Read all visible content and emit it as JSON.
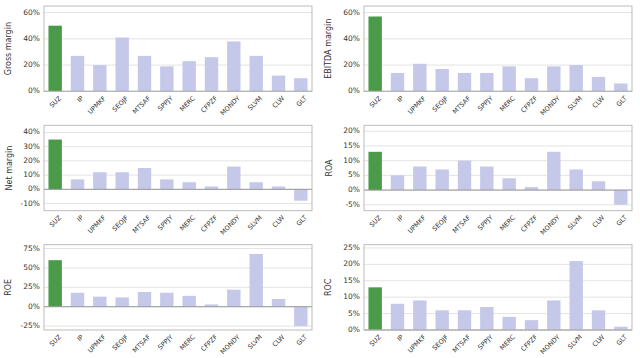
{
  "chart_data": [
    {
      "type": "bar",
      "ylabel": "Gross margin",
      "categories": [
        "SUZ",
        "IP",
        "UPMKF",
        "SEOJF",
        "MTSAF",
        "SPPJY",
        "MERC",
        "CFPZF",
        "MONDY",
        "SLVM",
        "CLW",
        "GLT"
      ],
      "values": [
        0.5,
        0.27,
        0.2,
        0.41,
        0.27,
        0.19,
        0.23,
        0.26,
        0.38,
        0.27,
        0.12,
        0.1
      ],
      "colors": [
        "#4a9a4a",
        "#c5c8e8",
        "#c5c8e8",
        "#c5c8e8",
        "#c5c8e8",
        "#c5c8e8",
        "#c5c8e8",
        "#c5c8e8",
        "#c5c8e8",
        "#c5c8e8",
        "#c5c8e8",
        "#c5c8e8"
      ],
      "ylim": [
        0.0,
        0.65
      ],
      "yticks": [
        {
          "value": 0.0,
          "label": "0%"
        },
        {
          "value": 0.2,
          "label": "20%"
        },
        {
          "value": 0.4,
          "label": "40%"
        },
        {
          "value": 0.6,
          "label": "60%"
        }
      ],
      "grid": true
    },
    {
      "type": "bar",
      "ylabel": "EBITDA margin",
      "categories": [
        "SUZ",
        "IP",
        "UPMKF",
        "SEOJF",
        "MTSAF",
        "SPPJY",
        "MERC",
        "CFPZF",
        "MONDY",
        "SLVM",
        "CLW",
        "GLT"
      ],
      "values": [
        0.57,
        0.14,
        0.21,
        0.17,
        0.14,
        0.14,
        0.19,
        0.1,
        0.19,
        0.2,
        0.11,
        0.06
      ],
      "colors": [
        "#4a9a4a",
        "#c5c8e8",
        "#c5c8e8",
        "#c5c8e8",
        "#c5c8e8",
        "#c5c8e8",
        "#c5c8e8",
        "#c5c8e8",
        "#c5c8e8",
        "#c5c8e8",
        "#c5c8e8",
        "#c5c8e8"
      ],
      "ylim": [
        0.0,
        0.65
      ],
      "yticks": [
        {
          "value": 0.0,
          "label": "0%"
        },
        {
          "value": 0.2,
          "label": "20%"
        },
        {
          "value": 0.4,
          "label": "40%"
        },
        {
          "value": 0.6,
          "label": "60%"
        }
      ],
      "grid": true
    },
    {
      "type": "bar",
      "ylabel": "Net margin",
      "categories": [
        "SUZ",
        "IP",
        "UPMKF",
        "SEOJF",
        "MTSAF",
        "SPPJY",
        "MERC",
        "CFPZF",
        "MONDY",
        "SLVM",
        "CLW",
        "GLT"
      ],
      "values": [
        0.35,
        0.07,
        0.12,
        0.12,
        0.15,
        0.07,
        0.05,
        0.02,
        0.16,
        0.05,
        0.02,
        -0.08
      ],
      "colors": [
        "#4a9a4a",
        "#c5c8e8",
        "#c5c8e8",
        "#c5c8e8",
        "#c5c8e8",
        "#c5c8e8",
        "#c5c8e8",
        "#c5c8e8",
        "#c5c8e8",
        "#c5c8e8",
        "#c5c8e8",
        "#c5c8e8"
      ],
      "ylim": [
        -0.15,
        0.45
      ],
      "yticks": [
        {
          "value": -0.1,
          "label": "-10%"
        },
        {
          "value": 0.0,
          "label": "0%"
        },
        {
          "value": 0.1,
          "label": "10%"
        },
        {
          "value": 0.2,
          "label": "20%"
        },
        {
          "value": 0.3,
          "label": "30%"
        },
        {
          "value": 0.4,
          "label": "40%"
        }
      ],
      "grid": true
    },
    {
      "type": "bar",
      "ylabel": "ROA",
      "categories": [
        "SUZ",
        "IP",
        "UPMKF",
        "SEOJF",
        "MTSAF",
        "SPPJY",
        "MERC",
        "CFPZF",
        "MONDY",
        "SLVM",
        "CLW",
        "GLT"
      ],
      "values": [
        0.13,
        0.05,
        0.08,
        0.07,
        0.1,
        0.08,
        0.04,
        0.01,
        0.13,
        0.07,
        0.03,
        -0.05
      ],
      "colors": [
        "#4a9a4a",
        "#c5c8e8",
        "#c5c8e8",
        "#c5c8e8",
        "#c5c8e8",
        "#c5c8e8",
        "#c5c8e8",
        "#c5c8e8",
        "#c5c8e8",
        "#c5c8e8",
        "#c5c8e8",
        "#c5c8e8"
      ],
      "ylim": [
        -0.07,
        0.22
      ],
      "yticks": [
        {
          "value": -0.05,
          "label": "-5%"
        },
        {
          "value": 0.0,
          "label": "0%"
        },
        {
          "value": 0.05,
          "label": "5%"
        },
        {
          "value": 0.1,
          "label": "10%"
        },
        {
          "value": 0.15,
          "label": "15%"
        },
        {
          "value": 0.2,
          "label": "20%"
        }
      ],
      "grid": true
    },
    {
      "type": "bar",
      "ylabel": "ROE",
      "categories": [
        "SUZ",
        "IP",
        "UPMKF",
        "SEOJF",
        "MTSAF",
        "SPPJY",
        "MERC",
        "CFPZF",
        "MONDY",
        "SLVM",
        "CLW",
        "GLT"
      ],
      "values": [
        0.6,
        0.18,
        0.13,
        0.12,
        0.19,
        0.18,
        0.14,
        0.03,
        0.22,
        0.68,
        0.1,
        -0.25
      ],
      "colors": [
        "#4a9a4a",
        "#c5c8e8",
        "#c5c8e8",
        "#c5c8e8",
        "#c5c8e8",
        "#c5c8e8",
        "#c5c8e8",
        "#c5c8e8",
        "#c5c8e8",
        "#c5c8e8",
        "#c5c8e8",
        "#c5c8e8"
      ],
      "ylim": [
        -0.3,
        0.8
      ],
      "yticks": [
        {
          "value": -0.25,
          "label": "-25%"
        },
        {
          "value": 0.0,
          "label": "0%"
        },
        {
          "value": 0.25,
          "label": "25%"
        },
        {
          "value": 0.5,
          "label": "50%"
        },
        {
          "value": 0.75,
          "label": "75%"
        }
      ],
      "grid": true
    },
    {
      "type": "bar",
      "ylabel": "ROC",
      "categories": [
        "SUZ",
        "IP",
        "UPMKF",
        "SEOJF",
        "MTSAF",
        "SPPJY",
        "MERC",
        "CFPZF",
        "MONDY",
        "SLVM",
        "CLW",
        "GLT"
      ],
      "values": [
        0.13,
        0.08,
        0.09,
        0.06,
        0.06,
        0.07,
        0.04,
        0.03,
        0.09,
        0.21,
        0.06,
        0.01
      ],
      "colors": [
        "#4a9a4a",
        "#c5c8e8",
        "#c5c8e8",
        "#c5c8e8",
        "#c5c8e8",
        "#c5c8e8",
        "#c5c8e8",
        "#c5c8e8",
        "#c5c8e8",
        "#c5c8e8",
        "#c5c8e8",
        "#c5c8e8"
      ],
      "ylim": [
        0.0,
        0.26
      ],
      "yticks": [
        {
          "value": 0.0,
          "label": "0%"
        },
        {
          "value": 0.05,
          "label": "5%"
        },
        {
          "value": 0.1,
          "label": "10%"
        },
        {
          "value": 0.15,
          "label": "15%"
        },
        {
          "value": 0.2,
          "label": "20%"
        },
        {
          "value": 0.25,
          "label": "25%"
        }
      ],
      "grid": true
    }
  ]
}
